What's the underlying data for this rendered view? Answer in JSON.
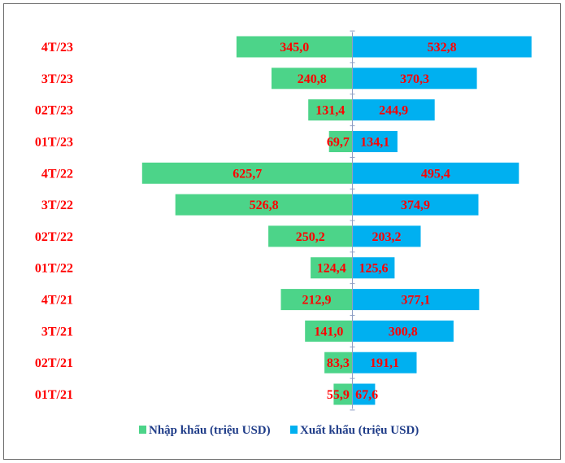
{
  "chart_data": {
    "type": "bar",
    "orientation": "horizontal-butterfly",
    "categories": [
      "4T/23",
      "3T/23",
      "02T/23",
      "01T/23",
      "4T/22",
      "3T/22",
      "02T/22",
      "01T/22",
      "4T/21",
      "3T/21",
      "02T/21",
      "01T/21"
    ],
    "series": [
      {
        "name": "Nhập khẩu (triệu USD)",
        "color": "#4cd489",
        "direction": "left",
        "values": [
          345.0,
          240.8,
          131.4,
          69.7,
          625.7,
          526.8,
          250.2,
          124.4,
          212.9,
          141.0,
          83.3,
          55.9
        ],
        "labels": [
          "345,0",
          "240,8",
          "131,4",
          "69,7",
          "625,7",
          "526,8",
          "250,2",
          "124,4",
          "212,9",
          "141,0",
          "83,3",
          "55,9"
        ]
      },
      {
        "name": "Xuất khẩu (triệu USD)",
        "color": "#00b0f0",
        "direction": "right",
        "values": [
          532.8,
          370.3,
          244.9,
          134.1,
          495.4,
          374.9,
          203.2,
          125.6,
          377.1,
          300.8,
          191.1,
          67.6
        ],
        "labels": [
          "532,8",
          "370,3",
          "244,9",
          "134,1",
          "495,4",
          "374,9",
          "203,2",
          "125,6",
          "377,1",
          "300,8",
          "191,1",
          "67,6"
        ]
      }
    ],
    "label_color": "#ff0000",
    "legend_text_color": "#1f3c88",
    "axis_color": "#8e9fc4",
    "legend_position": "bottom",
    "grid": false
  }
}
